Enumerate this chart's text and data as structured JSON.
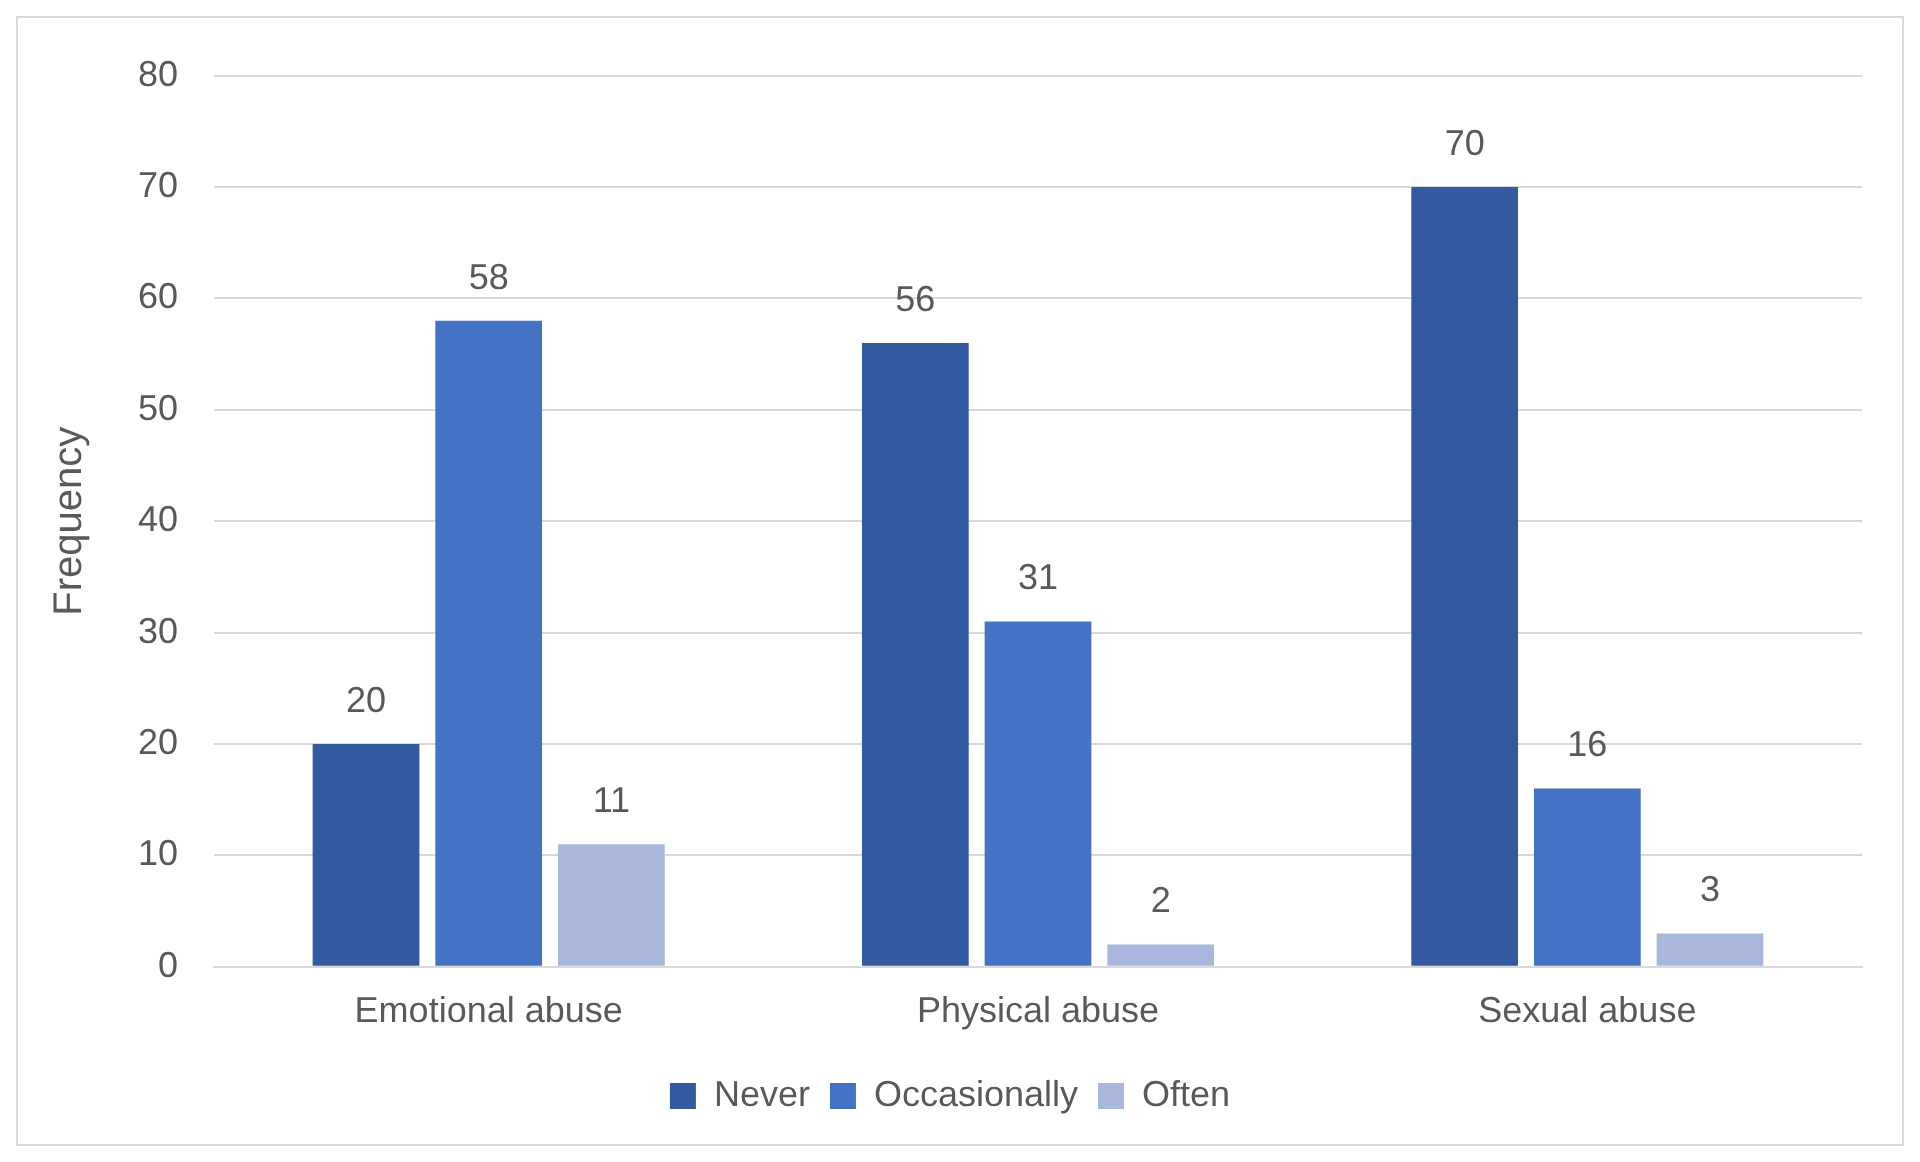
{
  "chart_data": {
    "type": "bar",
    "ylabel": "Frequency",
    "categories": [
      "Emotional abuse",
      "Physical abuse",
      "Sexual abuse"
    ],
    "series": [
      {
        "name": "Never",
        "color": "#335aa1",
        "values": [
          20,
          56,
          70
        ]
      },
      {
        "name": "Occasionally",
        "color": "#4472c4",
        "values": [
          58,
          31,
          16
        ]
      },
      {
        "name": "Often",
        "color": "#a9b7dc",
        "values": [
          11,
          2,
          3
        ]
      }
    ],
    "ylim": [
      0,
      80
    ],
    "yticks": [
      0,
      10,
      20,
      30,
      40,
      50,
      60,
      70,
      80
    ],
    "grid": "y",
    "legend": "bottom",
    "data_labels": true
  }
}
